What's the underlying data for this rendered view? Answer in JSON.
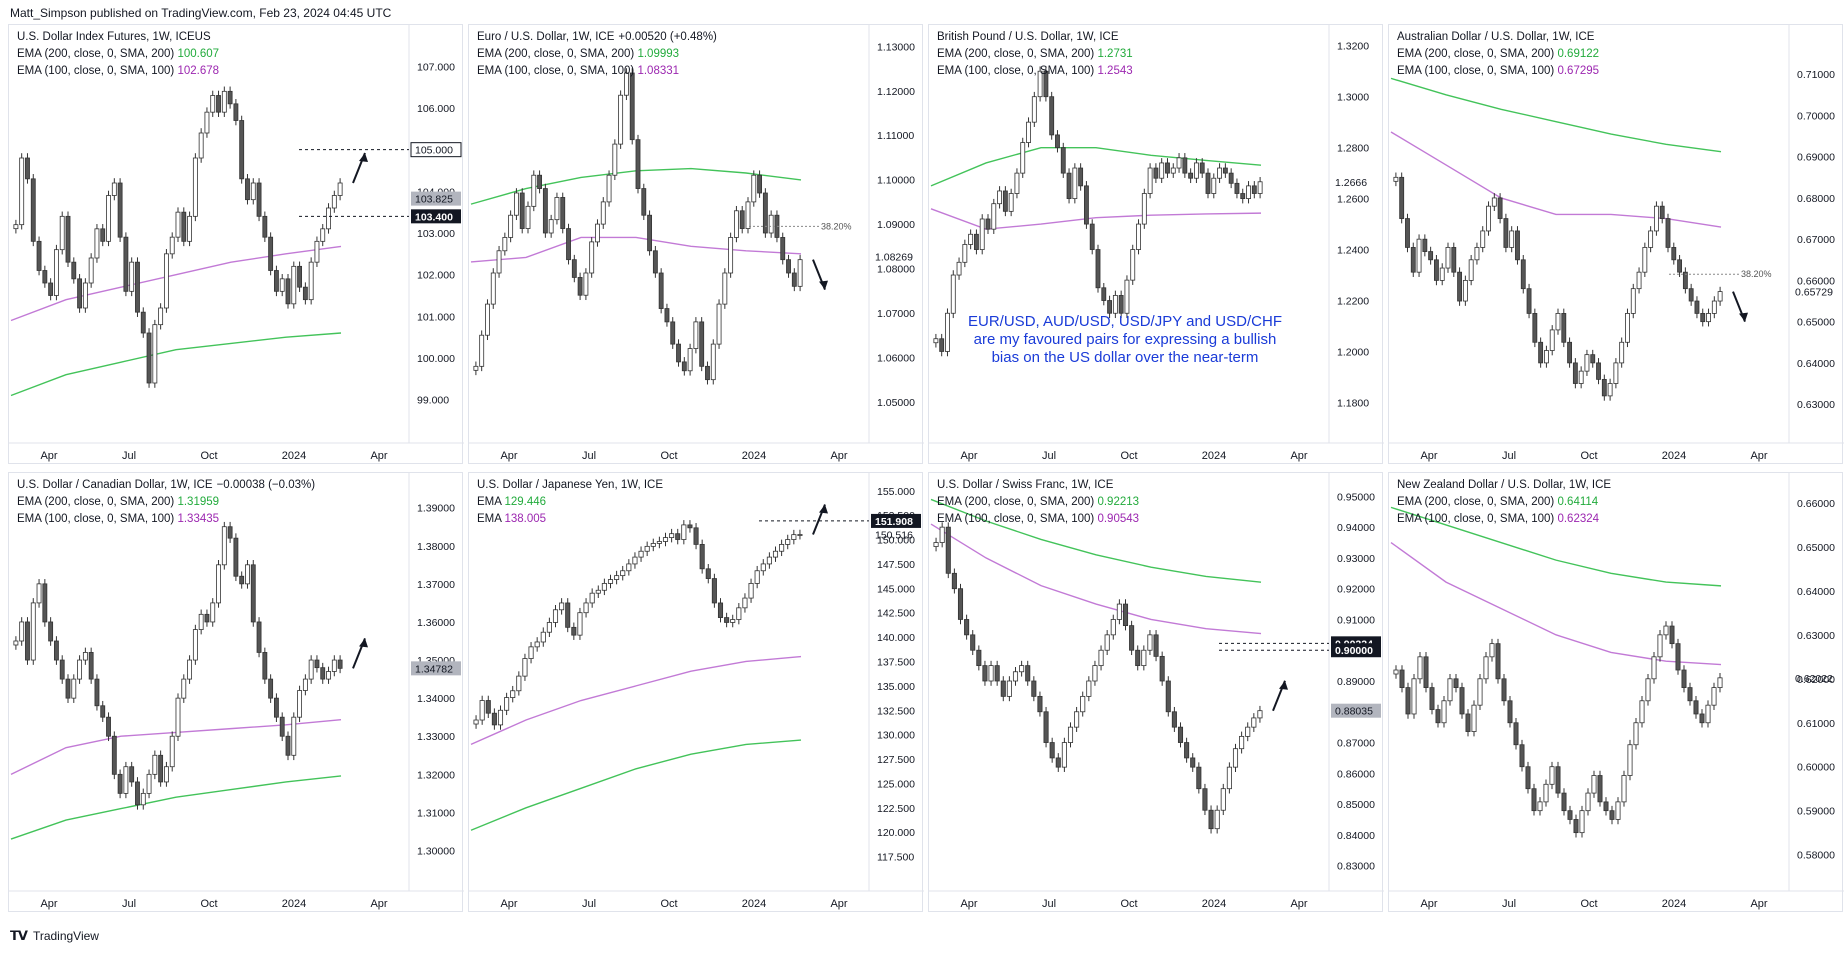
{
  "header": "Matt_Simpson published on TradingView.com, Feb 23, 2024 04:45 UTC",
  "footer": "TradingView",
  "colors": {
    "ema200": "#43c35a",
    "ema100": "#c27ad6",
    "candle_up": "#ffffff",
    "candle_down": "#555555",
    "wick": "#333333",
    "arrow": "#131722",
    "annotation": "#1a3bd8"
  },
  "panels": [
    {
      "title": "U.S. Dollar Index Futures, 1W, ICEUS",
      "change": "",
      "ema200_label": "EMA (200, close, 0, SMA, 200)",
      "ema200_value": "100.607",
      "ema100_label": "EMA (100, close, 0, SMA, 100)",
      "ema100_value": "102.678",
      "ylim": [
        98.2,
        107.8
      ],
      "ticks": [
        "107.000",
        "106.000",
        "105.000",
        "104.000",
        "103.000",
        "102.000",
        "101.000",
        "100.000",
        "99.000"
      ],
      "tick_values": [
        107,
        106,
        105,
        104,
        103,
        102,
        101,
        100,
        99
      ],
      "xlabels": [
        "Apr",
        "Jul",
        "Oct",
        "2024",
        "Apr"
      ],
      "closes": [
        103.2,
        104.8,
        104.3,
        102.8,
        102.1,
        101.8,
        101.5,
        102.6,
        103.4,
        102.3,
        101.9,
        101.2,
        101.8,
        102.4,
        103.1,
        102.8,
        103.9,
        104.2,
        102.9,
        101.6,
        102.3,
        101.1,
        100.6,
        99.4,
        100.8,
        101.2,
        102.5,
        102.9,
        103.5,
        102.8,
        103.4,
        104.8,
        105.4,
        105.9,
        106.3,
        105.9,
        106.4,
        106.1,
        105.7,
        104.3,
        103.8,
        104.2,
        103.4,
        102.9,
        102.1,
        101.6,
        101.9,
        101.3,
        102.2,
        101.7,
        101.4,
        102.3,
        102.8,
        103.1,
        103.6,
        103.9,
        104.2
      ],
      "price_tags": [
        {
          "label": "105.000",
          "value": 105.0,
          "style": "outline"
        },
        {
          "label": "103.825",
          "value": 103.825,
          "style": "grey"
        },
        {
          "label": "103.400",
          "value": 103.4,
          "style": "dark"
        }
      ],
      "ema200": [
        99.1,
        99.6,
        99.9,
        100.2,
        100.35,
        100.5,
        100.6
      ],
      "ema100": [
        100.9,
        101.4,
        101.7,
        102.0,
        102.3,
        102.5,
        102.678
      ],
      "arrow": "up"
    },
    {
      "title": "Euro / U.S. Dollar, 1W, ICE",
      "change": "+0.00520 (+0.48%)",
      "ema200_label": "EMA (200, close, 0, SMA, 200)",
      "ema200_value": "1.09993",
      "ema100_label": "EMA (100, close, 0, SMA, 100)",
      "ema100_value": "1.08331",
      "ylim": [
        1.043,
        1.133
      ],
      "ticks": [
        "1.13000",
        "1.12000",
        "1.11000",
        "1.10000",
        "1.09000",
        "1.08000",
        "1.07000",
        "1.06000",
        "1.05000"
      ],
      "tick_values": [
        1.13,
        1.12,
        1.11,
        1.1,
        1.09,
        1.08,
        1.07,
        1.06,
        1.05
      ],
      "xlabels": [
        "Apr",
        "Jul",
        "Oct",
        "2024",
        "Apr"
      ],
      "closes": [
        1.058,
        1.065,
        1.072,
        1.079,
        1.084,
        1.087,
        1.092,
        1.097,
        1.089,
        1.094,
        1.101,
        1.098,
        1.088,
        1.091,
        1.096,
        1.089,
        1.082,
        1.078,
        1.074,
        1.079,
        1.086,
        1.09,
        1.095,
        1.101,
        1.108,
        1.119,
        1.124,
        1.109,
        1.098,
        1.092,
        1.084,
        1.079,
        1.071,
        1.068,
        1.063,
        1.059,
        1.057,
        1.062,
        1.068,
        1.058,
        1.055,
        1.063,
        1.072,
        1.079,
        1.087,
        1.093,
        1.089,
        1.095,
        1.101,
        1.097,
        1.088,
        1.092,
        1.087,
        1.082,
        1.079,
        1.076,
        1.082
      ],
      "price_tags": [
        {
          "label": "1.08269",
          "value": 1.08269,
          "style": "plain"
        }
      ],
      "ema200": [
        1.0945,
        1.098,
        1.1005,
        1.102,
        1.1025,
        1.1015,
        1.09993
      ],
      "ema100": [
        1.0815,
        1.0825,
        1.087,
        1.087,
        1.085,
        1.084,
        1.08331
      ],
      "fib": "38.20%",
      "fib_value": 1.0895,
      "arrow": "down"
    },
    {
      "title": "British Pound / U.S. Dollar, 1W, ICE",
      "change": "",
      "ema200_label": "EMA (200, close, 0, SMA, 200)",
      "ema200_value": "1.2731",
      "ema100_label": "EMA (100, close, 0, SMA, 100)",
      "ema100_value": "1.2543",
      "ylim": [
        1.168,
        1.325
      ],
      "ticks": [
        "1.3200",
        "1.3000",
        "1.2800",
        "1.2600",
        "1.2400",
        "1.2200",
        "1.2000",
        "1.1800"
      ],
      "tick_values": [
        1.32,
        1.3,
        1.28,
        1.26,
        1.24,
        1.22,
        1.2,
        1.18
      ],
      "xlabels": [
        "Apr",
        "Jul",
        "Oct",
        "2024",
        "Apr"
      ],
      "closes": [
        1.205,
        1.2,
        1.215,
        1.23,
        1.235,
        1.242,
        1.246,
        1.24,
        1.252,
        1.248,
        1.258,
        1.263,
        1.255,
        1.262,
        1.27,
        1.282,
        1.29,
        1.3,
        1.31,
        1.3,
        1.285,
        1.28,
        1.27,
        1.26,
        1.272,
        1.265,
        1.25,
        1.24,
        1.225,
        1.22,
        1.215,
        1.222,
        1.215,
        1.228,
        1.24,
        1.25,
        1.262,
        1.272,
        1.268,
        1.274,
        1.27,
        1.272,
        1.276,
        1.27,
        1.268,
        1.274,
        1.27,
        1.262,
        1.268,
        1.272,
        1.27,
        1.266,
        1.262,
        1.26,
        1.265,
        1.262,
        1.2666
      ],
      "price_tags": [
        {
          "label": "1.2666",
          "value": 1.2666,
          "style": "plain"
        }
      ],
      "ema200": [
        1.265,
        1.274,
        1.28,
        1.28,
        1.277,
        1.275,
        1.2731
      ],
      "ema100": [
        1.256,
        1.248,
        1.25,
        1.2525,
        1.2535,
        1.254,
        1.2543
      ],
      "arrow": "none"
    },
    {
      "title": "Australian Dollar / U.S. Dollar, 1W, ICE",
      "change": "",
      "ema200_label": "EMA (200, close, 0, SMA, 200)",
      "ema200_value": "0.69122",
      "ema100_label": "EMA (100, close, 0, SMA, 100)",
      "ema100_value": "0.67295",
      "ylim": [
        0.623,
        0.72
      ],
      "ticks": [
        "0.71000",
        "0.70000",
        "0.69000",
        "0.68000",
        "0.67000",
        "0.66000",
        "0.65000",
        "0.64000",
        "0.63000"
      ],
      "tick_values": [
        0.71,
        0.7,
        0.69,
        0.68,
        0.67,
        0.66,
        0.65,
        0.64,
        0.63
      ],
      "xlabels": [
        "Apr",
        "Jul",
        "Oct",
        "2024",
        "Apr"
      ],
      "closes": [
        0.685,
        0.675,
        0.668,
        0.662,
        0.67,
        0.667,
        0.665,
        0.66,
        0.663,
        0.668,
        0.662,
        0.655,
        0.66,
        0.665,
        0.668,
        0.672,
        0.678,
        0.68,
        0.675,
        0.668,
        0.672,
        0.665,
        0.658,
        0.652,
        0.645,
        0.64,
        0.643,
        0.648,
        0.652,
        0.645,
        0.64,
        0.635,
        0.638,
        0.642,
        0.64,
        0.636,
        0.632,
        0.635,
        0.64,
        0.645,
        0.652,
        0.658,
        0.662,
        0.668,
        0.672,
        0.678,
        0.675,
        0.668,
        0.665,
        0.662,
        0.658,
        0.655,
        0.652,
        0.65,
        0.652,
        0.655,
        0.65729
      ],
      "price_tags": [
        {
          "label": "0.65729",
          "value": 0.65729,
          "style": "plain"
        }
      ],
      "ema200": [
        0.709,
        0.705,
        0.7015,
        0.6985,
        0.6955,
        0.693,
        0.69122
      ],
      "ema100": [
        0.696,
        0.688,
        0.68,
        0.676,
        0.676,
        0.675,
        0.67295
      ],
      "fib": "38.20%",
      "fib_value": 0.6615,
      "arrow": "down"
    },
    {
      "title": "U.S. Dollar / Canadian Dollar, 1W, ICE",
      "change": "−0.00038 (−0.03%)",
      "ema200_label": "EMA (200, close, 0, SMA, 200)",
      "ema200_value": "1.31959",
      "ema100_label": "EMA (100, close, 0, SMA, 100)",
      "ema100_value": "1.33435",
      "ylim": [
        1.292,
        1.397
      ],
      "ticks": [
        "1.39000",
        "1.38000",
        "1.37000",
        "1.36000",
        "1.35000",
        "1.34000",
        "1.33000",
        "1.32000",
        "1.31000",
        "1.30000"
      ],
      "tick_values": [
        1.39,
        1.38,
        1.37,
        1.36,
        1.35,
        1.34,
        1.33,
        1.32,
        1.31,
        1.3
      ],
      "xlabels": [
        "Apr",
        "Jul",
        "Oct",
        "2024",
        "Apr"
      ],
      "closes": [
        1.355,
        1.36,
        1.35,
        1.365,
        1.37,
        1.36,
        1.355,
        1.35,
        1.345,
        1.34,
        1.345,
        1.35,
        1.352,
        1.345,
        1.338,
        1.335,
        1.33,
        1.32,
        1.315,
        1.322,
        1.318,
        1.312,
        1.315,
        1.32,
        1.325,
        1.318,
        1.322,
        1.33,
        1.34,
        1.345,
        1.35,
        1.358,
        1.362,
        1.36,
        1.365,
        1.375,
        1.385,
        1.382,
        1.372,
        1.37,
        1.375,
        1.36,
        1.352,
        1.345,
        1.34,
        1.335,
        1.33,
        1.325,
        1.335,
        1.342,
        1.345,
        1.35,
        1.348,
        1.345,
        1.347,
        1.35,
        1.34782
      ],
      "price_tags": [
        {
          "label": "1.34782",
          "value": 1.34782,
          "style": "grey"
        }
      ],
      "ema200": [
        1.303,
        1.308,
        1.311,
        1.314,
        1.316,
        1.318,
        1.31959
      ],
      "ema100": [
        1.32,
        1.327,
        1.33,
        1.331,
        1.332,
        1.333,
        1.33435
      ],
      "arrow": "up"
    },
    {
      "title": "U.S. Dollar / Japanese Yen, 1W, ICE",
      "change": "",
      "ema200_label": "EMA",
      "ema200_value": "129.446",
      "ema100_label": "EMA",
      "ema100_value": "138.005",
      "ylim": [
        115,
        156
      ],
      "ticks": [
        "155.000",
        "152.500",
        "150.000",
        "147.500",
        "145.000",
        "142.500",
        "140.000",
        "137.500",
        "135.000",
        "132.500",
        "130.000",
        "127.500",
        "125.000",
        "122.500",
        "120.000",
        "117.500"
      ],
      "tick_values": [
        155,
        152.5,
        150,
        147.5,
        145,
        142.5,
        140,
        137.5,
        135,
        132.5,
        130,
        127.5,
        125,
        122.5,
        120,
        117.5
      ],
      "xlabels": [
        "Apr",
        "Jul",
        "Oct",
        "2024",
        "Apr"
      ],
      "closes": [
        131.5,
        133.5,
        132.2,
        131.0,
        132.5,
        133.8,
        134.5,
        136.0,
        137.8,
        139.0,
        139.5,
        140.5,
        141.5,
        142.8,
        143.5,
        141.0,
        140.2,
        142.5,
        143.5,
        144.5,
        144.8,
        145.5,
        145.9,
        146.3,
        146.8,
        147.5,
        148.2,
        148.8,
        149.3,
        149.6,
        149.8,
        150.2,
        150.6,
        150.0,
        151.5,
        151.2,
        149.5,
        147.0,
        146.0,
        143.5,
        142.0,
        141.5,
        141.8,
        143.0,
        144.0,
        145.5,
        146.8,
        147.5,
        148.2,
        148.8,
        149.5,
        150.0,
        150.5,
        150.516
      ],
      "price_tags": [
        {
          "label": "151.908",
          "value": 151.908,
          "style": "dark"
        },
        {
          "label": "150.516",
          "value": 150.516,
          "style": "plain"
        }
      ],
      "ema200": [
        120.2,
        122.5,
        124.5,
        126.5,
        128.0,
        129.0,
        129.446
      ],
      "ema100": [
        129.0,
        131.5,
        133.5,
        135.0,
        136.5,
        137.5,
        138.005
      ],
      "arrow": "up"
    },
    {
      "title": "U.S. Dollar / Swiss Franc, 1W, ICE",
      "change": "",
      "ema200_label": "EMA (200, close, 0, SMA, 200)",
      "ema200_value": "0.92213",
      "ema100_label": "EMA (100, close, 0, SMA, 100)",
      "ema100_value": "0.90543",
      "ylim": [
        0.825,
        0.955
      ],
      "ticks": [
        "0.95000",
        "0.94000",
        "0.93000",
        "0.92000",
        "0.91000",
        "0.90000",
        "0.89000",
        "0.88000",
        "0.87000",
        "0.86000",
        "0.85000",
        "0.84000",
        "0.83000"
      ],
      "tick_values": [
        0.95,
        0.94,
        0.93,
        0.92,
        0.91,
        0.9,
        0.89,
        0.88,
        0.87,
        0.86,
        0.85,
        0.84,
        0.83
      ],
      "xlabels": [
        "Apr",
        "Jul",
        "Oct",
        "2024",
        "Apr"
      ],
      "closes": [
        0.935,
        0.94,
        0.925,
        0.92,
        0.91,
        0.905,
        0.9,
        0.895,
        0.89,
        0.895,
        0.89,
        0.885,
        0.89,
        0.893,
        0.895,
        0.89,
        0.885,
        0.88,
        0.87,
        0.865,
        0.862,
        0.87,
        0.875,
        0.88,
        0.885,
        0.89,
        0.895,
        0.9,
        0.905,
        0.91,
        0.915,
        0.908,
        0.9,
        0.895,
        0.9,
        0.905,
        0.898,
        0.89,
        0.88,
        0.875,
        0.87,
        0.865,
        0.862,
        0.855,
        0.848,
        0.842,
        0.848,
        0.855,
        0.862,
        0.868,
        0.872,
        0.875,
        0.878,
        0.88035
      ],
      "price_tags": [
        {
          "label": "0.90224",
          "value": 0.90224,
          "style": "dark"
        },
        {
          "label": "0.90000",
          "value": 0.9,
          "style": "dark"
        },
        {
          "label": "0.88035",
          "value": 0.88035,
          "style": "grey"
        }
      ],
      "ema200": [
        0.949,
        0.942,
        0.936,
        0.931,
        0.927,
        0.924,
        0.92213
      ],
      "ema100": [
        0.941,
        0.93,
        0.921,
        0.915,
        0.91,
        0.907,
        0.90543
      ],
      "arrow": "up"
    },
    {
      "title": "New Zealand Dollar / U.S. Dollar, 1W, ICE",
      "change": "",
      "ema200_label": "EMA (200, close, 0, SMA, 200)",
      "ema200_value": "0.64114",
      "ema100_label": "EMA (100, close, 0, SMA, 100)",
      "ema100_value": "0.62324",
      "ylim": [
        0.574,
        0.665
      ],
      "ticks": [
        "0.66000",
        "0.65000",
        "0.64000",
        "0.63000",
        "0.62000",
        "0.61000",
        "0.60000",
        "0.59000",
        "0.58000"
      ],
      "tick_values": [
        0.66,
        0.65,
        0.64,
        0.63,
        0.62,
        0.61,
        0.6,
        0.59,
        0.58
      ],
      "xlabels": [
        "Apr",
        "Jul",
        "Oct",
        "2024",
        "Apr"
      ],
      "closes": [
        0.622,
        0.618,
        0.612,
        0.62,
        0.625,
        0.618,
        0.613,
        0.61,
        0.615,
        0.62,
        0.618,
        0.612,
        0.608,
        0.614,
        0.62,
        0.625,
        0.628,
        0.62,
        0.615,
        0.61,
        0.605,
        0.6,
        0.595,
        0.59,
        0.592,
        0.596,
        0.6,
        0.594,
        0.59,
        0.588,
        0.585,
        0.59,
        0.594,
        0.598,
        0.592,
        0.59,
        0.588,
        0.592,
        0.598,
        0.605,
        0.61,
        0.615,
        0.62,
        0.625,
        0.63,
        0.632,
        0.628,
        0.622,
        0.618,
        0.615,
        0.612,
        0.61,
        0.614,
        0.618,
        0.62022
      ],
      "price_tags": [
        {
          "label": "0.62022",
          "value": 0.62022,
          "style": "plain"
        }
      ],
      "ema200": [
        0.659,
        0.655,
        0.651,
        0.647,
        0.644,
        0.642,
        0.64114
      ],
      "ema100": [
        0.651,
        0.642,
        0.636,
        0.63,
        0.626,
        0.624,
        0.62324
      ],
      "arrow": "none"
    }
  ],
  "annotation": {
    "lines": [
      "EUR/USD, AUD/USD, USD/JPY and USD/CHF",
      "are my favoured pairs for expressing a  bullish",
      "bias on the US dollar over the near-term"
    ]
  }
}
